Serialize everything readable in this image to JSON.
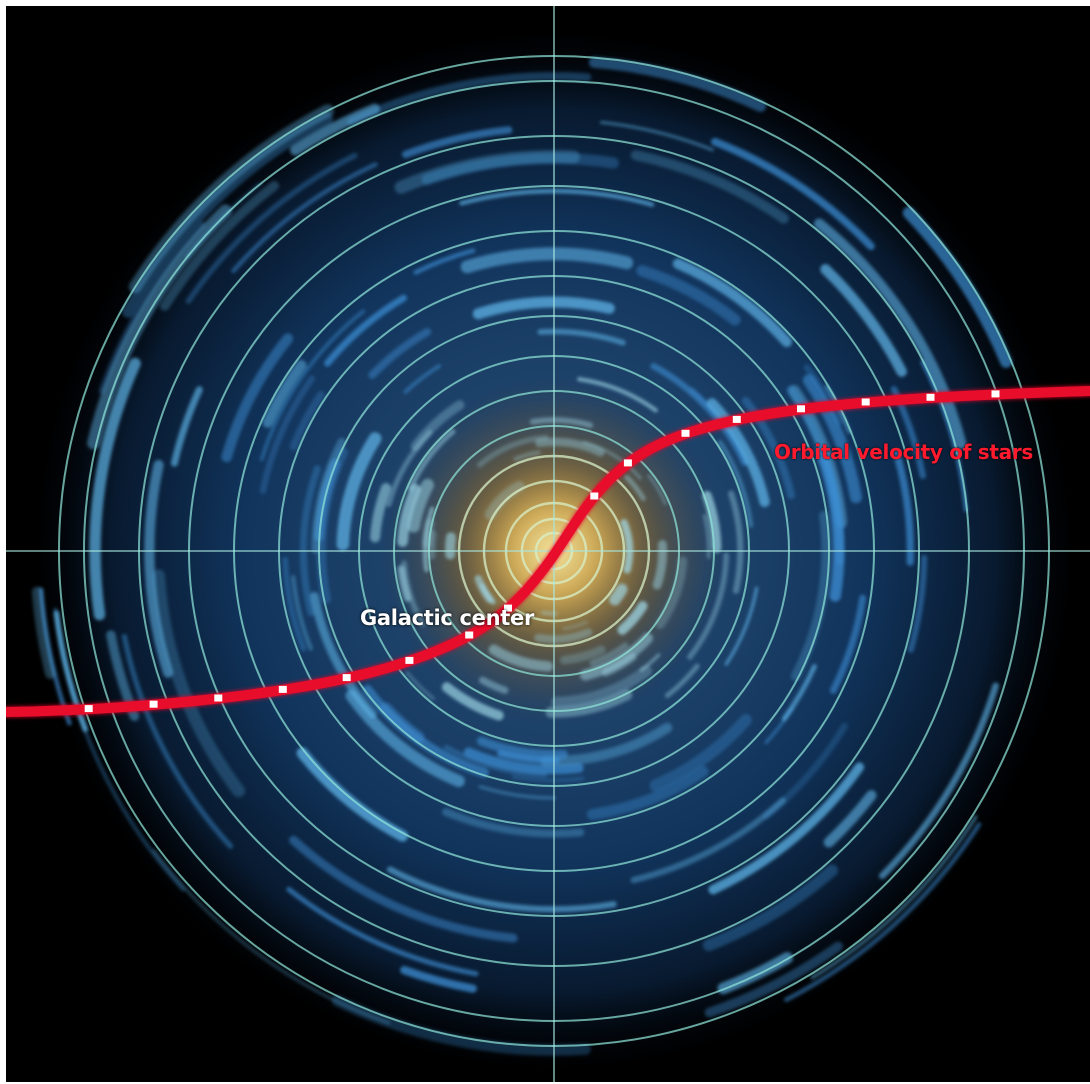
{
  "labels": {
    "galactic_center": "Galactic center",
    "orbital_velocity": "Orbital velocity of stars"
  },
  "colors": {
    "background": "#000000",
    "frame": "#ffffff",
    "velocity_curve": "#e8102a",
    "velocity_markers": "#ffffff",
    "orbit_rings": "#8fe4d8",
    "crosshair": "#a8e8e0",
    "galaxy_core": "#d9b25a",
    "galaxy_disk": "#2e78c8"
  },
  "icons": {
    "crosshair": "crosshair-lines",
    "orbits": "concentric-orbit-rings",
    "markers": "orbit-velocity-markers"
  }
}
